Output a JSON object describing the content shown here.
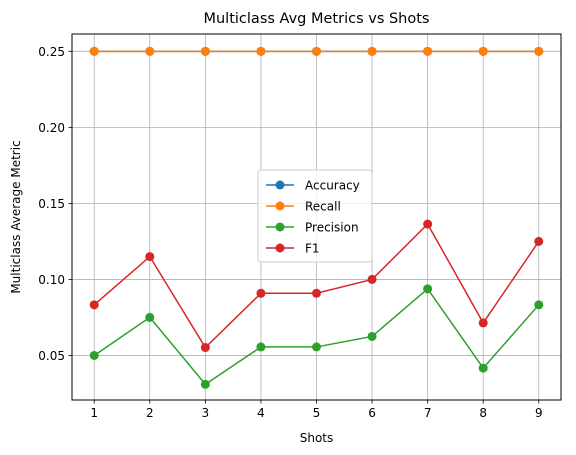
{
  "chart_data": {
    "type": "line",
    "title": "Multiclass Avg Metrics vs Shots",
    "xlabel": "Shots",
    "ylabel": "Multiclass Average Metric",
    "x": [
      1,
      2,
      3,
      4,
      5,
      6,
      7,
      8,
      9
    ],
    "xlim": [
      0.6,
      9.4
    ],
    "ylim": [
      0.0207,
      0.2614
    ],
    "xticks": [
      "1",
      "2",
      "3",
      "4",
      "5",
      "6",
      "7",
      "8",
      "9"
    ],
    "yticks": [
      "0.05",
      "0.10",
      "0.15",
      "0.20",
      "0.25"
    ],
    "ytick_values": [
      0.05,
      0.1,
      0.15,
      0.2,
      0.25
    ],
    "grid": true,
    "legend_position": "center",
    "series": [
      {
        "name": "Accuracy",
        "color": "#1f77b4",
        "marker": "circle",
        "values": [
          0.25,
          0.25,
          0.25,
          0.25,
          0.25,
          0.25,
          0.25,
          0.25,
          0.25
        ]
      },
      {
        "name": "Recall",
        "color": "#ff7f0e",
        "marker": "circle",
        "values": [
          0.25,
          0.25,
          0.25,
          0.25,
          0.25,
          0.25,
          0.25,
          0.25,
          0.25
        ]
      },
      {
        "name": "Precision",
        "color": "#2ca02c",
        "marker": "circle",
        "values": [
          0.05,
          0.075,
          0.031,
          0.0556,
          0.0556,
          0.0625,
          0.0938,
          0.0417,
          0.0833
        ]
      },
      {
        "name": "F1",
        "color": "#d62728",
        "marker": "circle",
        "values": [
          0.0833,
          0.115,
          0.0552,
          0.0909,
          0.0909,
          0.1,
          0.1364,
          0.0714,
          0.125
        ]
      }
    ]
  }
}
